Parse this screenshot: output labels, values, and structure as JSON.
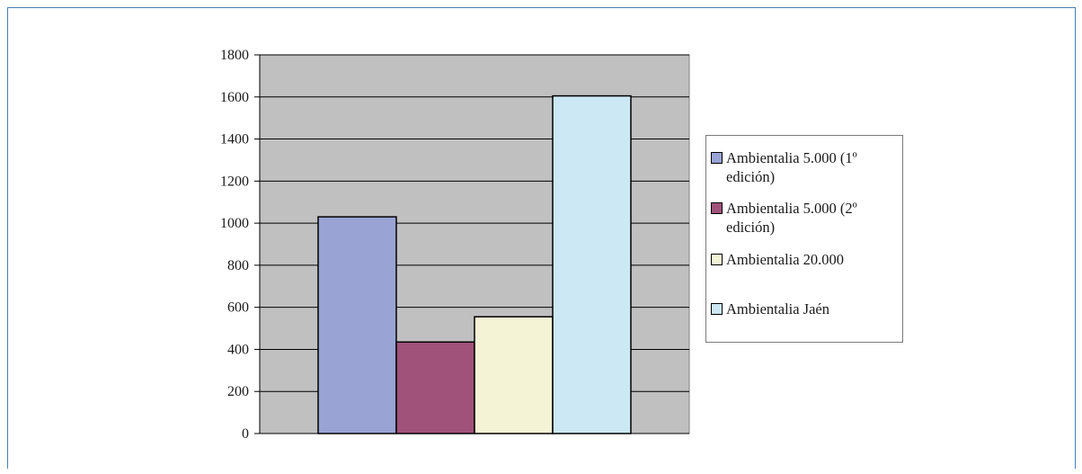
{
  "chart_data": {
    "type": "bar",
    "title": "",
    "xlabel": "",
    "ylabel": "",
    "ylim": [
      0,
      1800
    ],
    "yticks": [
      0,
      200,
      400,
      600,
      800,
      1000,
      1200,
      1400,
      1600,
      1800
    ],
    "grid": true,
    "legend_position": "right",
    "plot_background": "#c0c0c0",
    "series": [
      {
        "name": "Ambientalia 5.000 (1º edición)",
        "value": 1030,
        "color": "#99a3d4"
      },
      {
        "name": "Ambientalia 5.000 (2º edición)",
        "value": 435,
        "color": "#a0527a"
      },
      {
        "name": "Ambientalia 20.000",
        "value": 555,
        "color": "#f5f3d6"
      },
      {
        "name": "Ambientalia Jaén",
        "value": 1605,
        "color": "#cce8f4"
      }
    ]
  }
}
